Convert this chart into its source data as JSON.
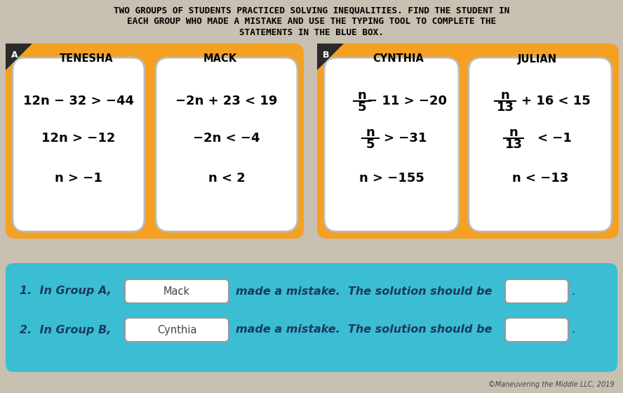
{
  "title_line1": "TWO GROUPS OF STUDENTS PRACTICED SOLVING INEQUALITIES. FIND THE STUDENT IN",
  "title_line2": "EACH GROUP WHO MADE A MISTAKE AND USE THE TYPING TOOL TO COMPLETE THE",
  "title_line3": "STATEMENTS IN THE BLUE BOX.",
  "bg_color": "#c8c0b0",
  "orange_color": "#F5A020",
  "white_card_color": "#FFFFFF",
  "blue_box_color": "#3BBDD4",
  "dark_badge_color": "#2a2a2a",
  "group_a_label": "A",
  "group_b_label": "B",
  "tenesha_name": "TENESHA",
  "mack_name": "MACK",
  "cynthia_name": "CYNTHIA",
  "julian_name": "JULIAN",
  "tenesha_line1": "12n − 32 > −44",
  "tenesha_line2": "12n > −12",
  "tenesha_line3": "n > −1",
  "mack_line1": "−2n + 23 < 19",
  "mack_line2": "−2n < −4",
  "mack_line3": "n < 2",
  "cynthia_line3": "n > −155",
  "julian_line3": "n < −13",
  "statement1_prefix": "1.  In Group A,",
  "statement1_name": "Mack",
  "statement1_mid": "made a mistake.  The solution should be",
  "statement2_prefix": "2.  In Group B,",
  "statement2_name": "Cynthia",
  "statement2_mid": "made a mistake.  The solution should be",
  "copyright": "©Maneuvering the Middle LLC, 2019",
  "text_color_blue": "#1a3a5c",
  "period": "."
}
